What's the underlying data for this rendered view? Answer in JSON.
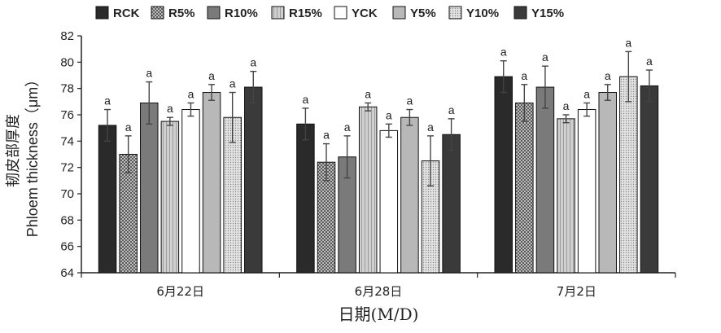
{
  "chart_data": {
    "type": "bar",
    "categories": [
      "6月22日",
      "6月28日",
      "7月2日"
    ],
    "xlabel": "日期(M/D)",
    "ylabel_cn": "韧皮部厚度",
    "ylabel_en": "Phloem thickness（μm）",
    "ylim": [
      64,
      82
    ],
    "yticks": [
      "64",
      "66",
      "68",
      "70",
      "72",
      "74",
      "76",
      "78",
      "80",
      "82"
    ],
    "legend_position": "top",
    "series": [
      {
        "name": "RCK",
        "values": [
          75.2,
          75.3,
          78.9
        ],
        "errors": [
          1.2,
          1.2,
          1.2
        ],
        "sig": [
          "a",
          "a",
          "a"
        ],
        "fill": "#2a2a2a",
        "pattern": "solid"
      },
      {
        "name": "R5%",
        "values": [
          73.0,
          72.4,
          76.9
        ],
        "errors": [
          1.4,
          1.4,
          1.4
        ],
        "sig": [
          "a",
          "a",
          "a"
        ],
        "fill": "#9a9a9a",
        "pattern": "checker"
      },
      {
        "name": "R10%",
        "values": [
          76.9,
          72.8,
          78.1
        ],
        "errors": [
          1.6,
          1.6,
          1.6
        ],
        "sig": [
          "a",
          "a",
          "a"
        ],
        "fill": "#7a7a7a",
        "pattern": "solid"
      },
      {
        "name": "R15%",
        "values": [
          75.5,
          76.6,
          75.7
        ],
        "errors": [
          0.3,
          0.3,
          0.3
        ],
        "sig": [
          "a",
          "a",
          "a"
        ],
        "fill": "#c4c4c4",
        "pattern": "hatch"
      },
      {
        "name": "YCK",
        "values": [
          76.4,
          74.8,
          76.4
        ],
        "errors": [
          0.5,
          0.5,
          0.5
        ],
        "sig": [
          "a",
          "a",
          "a"
        ],
        "fill": "#ffffff",
        "pattern": "solid"
      },
      {
        "name": "Y5%",
        "values": [
          77.7,
          75.8,
          77.7
        ],
        "errors": [
          0.6,
          0.6,
          0.6
        ],
        "sig": [
          "a",
          "a",
          "a"
        ],
        "fill": "#b8b8b8",
        "pattern": "solid"
      },
      {
        "name": "Y10%",
        "values": [
          75.8,
          72.5,
          78.9
        ],
        "errors": [
          1.9,
          1.9,
          1.9
        ],
        "sig": [
          "a",
          "a",
          "a"
        ],
        "fill": "#d6d6d6",
        "pattern": "dots"
      },
      {
        "name": "Y15%",
        "values": [
          78.1,
          74.5,
          78.2
        ],
        "errors": [
          1.2,
          1.2,
          1.2
        ],
        "sig": [
          "a",
          "a",
          "a"
        ],
        "fill": "#3a3a3a",
        "pattern": "solid"
      }
    ]
  }
}
